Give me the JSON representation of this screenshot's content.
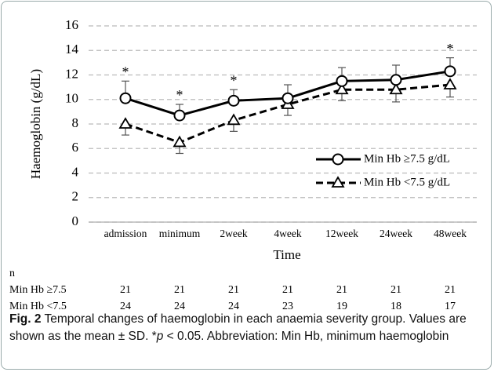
{
  "chart_data": {
    "type": "line",
    "y_label": "Haemoglobin (g/dL)",
    "x_label": "Time",
    "categories": [
      "admission",
      "minimum",
      "2week",
      "4week",
      "12week",
      "24week",
      "48week"
    ],
    "series": [
      {
        "name": "Min Hb ≥7.5 g/dL",
        "color": "#000000",
        "dash": "solid",
        "marker": "circle",
        "error_direction": "up",
        "values": [
          10.1,
          8.7,
          9.9,
          10.1,
          11.5,
          11.6,
          12.3
        ],
        "errors": [
          1.4,
          0.9,
          0.9,
          1.1,
          1.1,
          1.2,
          1.1
        ]
      },
      {
        "name": "Min Hb <7.5 g/dL",
        "color": "#000000",
        "dash": "dashed",
        "marker": "triangle",
        "error_direction": "down",
        "values": [
          8.0,
          6.5,
          8.3,
          9.6,
          10.8,
          10.8,
          11.2
        ],
        "errors": [
          0.9,
          0.9,
          0.9,
          0.9,
          0.9,
          1.0,
          1.0
        ]
      }
    ],
    "significance": [
      "*",
      "*",
      "*",
      null,
      null,
      null,
      "*"
    ],
    "ylim": [
      0,
      16
    ],
    "yticks": [
      0,
      2,
      4,
      6,
      8,
      10,
      12,
      14,
      16
    ],
    "grid": true,
    "legend": "lower-right"
  },
  "n_table": {
    "header": "n",
    "rows": [
      {
        "label": "Min Hb ≥7.5",
        "values": [
          21,
          21,
          21,
          21,
          21,
          21,
          21
        ]
      },
      {
        "label": "Min Hb <7.5",
        "values": [
          24,
          24,
          24,
          23,
          19,
          18,
          17
        ]
      }
    ]
  },
  "caption": {
    "label": "Fig. 2",
    "parts": [
      " Temporal changes of haemoglobin in each anaemia severity group. Values are shown as the mean ± SD. *",
      "p",
      " < 0.05. Abbreviation: Min Hb, minimum haemoglobin"
    ]
  }
}
